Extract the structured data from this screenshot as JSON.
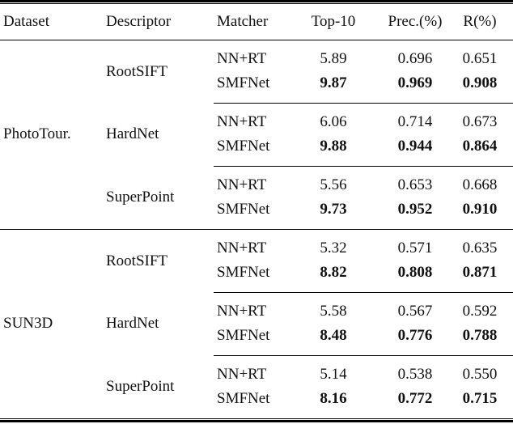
{
  "table": {
    "title": "matching-results-table",
    "columns": [
      "Dataset",
      "Descriptor",
      "Matcher",
      "Top-10",
      "Prec.(%)",
      "R(%)"
    ],
    "text_color": "#111111",
    "rule_color": "#000000",
    "sections": [
      {
        "dataset": "PhotoTour.",
        "groups": [
          {
            "descriptor": "RootSIFT",
            "rows": [
              {
                "matcher": "NN+RT",
                "top10": "5.89",
                "prec": "0.696",
                "r": "0.651",
                "bold": false
              },
              {
                "matcher": "SMFNet",
                "top10": "9.87",
                "prec": "0.969",
                "r": "0.908",
                "bold": true
              }
            ]
          },
          {
            "descriptor": "HardNet",
            "rows": [
              {
                "matcher": "NN+RT",
                "top10": "6.06",
                "prec": "0.714",
                "r": "0.673",
                "bold": false
              },
              {
                "matcher": "SMFNet",
                "top10": "9.88",
                "prec": "0.944",
                "r": "0.864",
                "bold": true
              }
            ]
          },
          {
            "descriptor": "SuperPoint",
            "rows": [
              {
                "matcher": "NN+RT",
                "top10": "5.56",
                "prec": "0.653",
                "r": "0.668",
                "bold": false
              },
              {
                "matcher": "SMFNet",
                "top10": "9.73",
                "prec": "0.952",
                "r": "0.910",
                "bold": true
              }
            ]
          }
        ]
      },
      {
        "dataset": "SUN3D",
        "groups": [
          {
            "descriptor": "RootSIFT",
            "rows": [
              {
                "matcher": "NN+RT",
                "top10": "5.32",
                "prec": "0.571",
                "r": "0.635",
                "bold": false
              },
              {
                "matcher": "SMFNet",
                "top10": "8.82",
                "prec": "0.808",
                "r": "0.871",
                "bold": true
              }
            ]
          },
          {
            "descriptor": "HardNet",
            "rows": [
              {
                "matcher": "NN+RT",
                "top10": "5.58",
                "prec": "0.567",
                "r": "0.592",
                "bold": false
              },
              {
                "matcher": "SMFNet",
                "top10": "8.48",
                "prec": "0.776",
                "r": "0.788",
                "bold": true
              }
            ]
          },
          {
            "descriptor": "SuperPoint",
            "rows": [
              {
                "matcher": "NN+RT",
                "top10": "5.14",
                "prec": "0.538",
                "r": "0.550",
                "bold": false
              },
              {
                "matcher": "SMFNet",
                "top10": "8.16",
                "prec": "0.772",
                "r": "0.715",
                "bold": true
              }
            ]
          }
        ]
      }
    ]
  }
}
